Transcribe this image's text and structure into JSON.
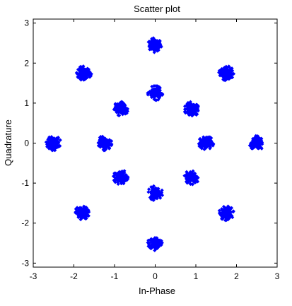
{
  "chart_data": {
    "type": "scatter",
    "title": "Scatter plot",
    "xlabel": "In-Phase",
    "ylabel": "Quadrature",
    "xlim": [
      -3,
      3
    ],
    "ylim": [
      -3.1,
      3.1
    ],
    "xticks": [
      -3,
      -2,
      -1,
      0,
      1,
      2,
      3
    ],
    "yticks": [
      -3,
      -2,
      -1,
      0,
      1,
      2,
      3
    ],
    "grid": false,
    "marker": "diamond",
    "marker_color": "#0000ff",
    "constellation_points": [
      {
        "x": 0,
        "y": 2.45
      },
      {
        "x": 1.75,
        "y": 1.75
      },
      {
        "x": 2.5,
        "y": 0
      },
      {
        "x": 1.75,
        "y": -1.75
      },
      {
        "x": 0,
        "y": -2.5
      },
      {
        "x": -1.8,
        "y": -1.75
      },
      {
        "x": -2.5,
        "y": 0
      },
      {
        "x": -1.75,
        "y": 1.75
      },
      {
        "x": 0,
        "y": 1.25
      },
      {
        "x": 0.9,
        "y": 0.85
      },
      {
        "x": 1.25,
        "y": 0
      },
      {
        "x": 0.9,
        "y": -0.85
      },
      {
        "x": 0,
        "y": -1.25
      },
      {
        "x": -0.85,
        "y": -0.85
      },
      {
        "x": -1.25,
        "y": 0
      },
      {
        "x": -0.85,
        "y": 0.85
      }
    ],
    "cluster_spread": 0.13,
    "samples_per_cluster": 150
  }
}
